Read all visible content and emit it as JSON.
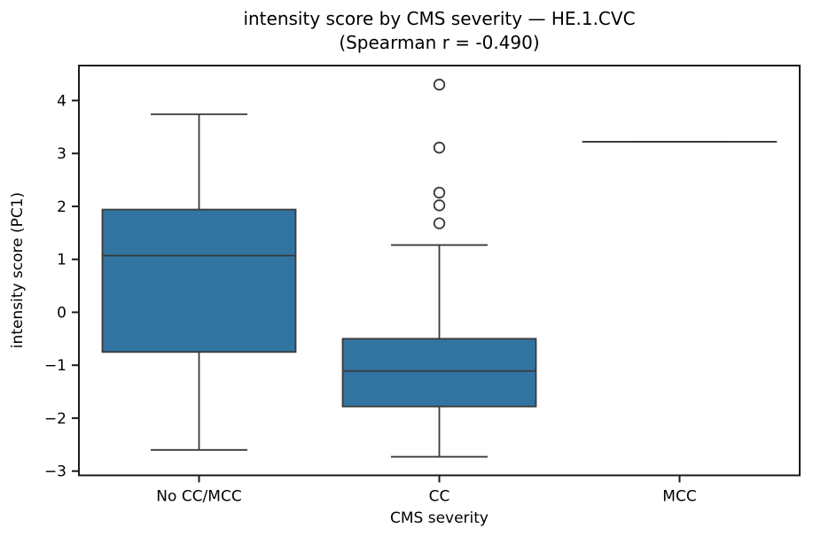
{
  "chart_data": {
    "type": "box",
    "title": "intensity score by CMS severity — HE.1.CVC",
    "subtitle": "(Spearman r = -0.490)",
    "xlabel": "CMS severity",
    "ylabel": "intensity score (PC1)",
    "categories": [
      "No CC/MCC",
      "CC",
      "MCC"
    ],
    "ylim": [
      -3.08,
      4.66
    ],
    "yticks": [
      -3,
      -2,
      -1,
      0,
      1,
      2,
      3,
      4
    ],
    "grid": false,
    "legend_position": "none",
    "series": [
      {
        "name": "No CC/MCC",
        "whisker_low": -2.6,
        "q1": -0.75,
        "median": 1.07,
        "q3": 1.94,
        "whisker_high": 3.74,
        "outliers": []
      },
      {
        "name": "CC",
        "whisker_low": -2.73,
        "q1": -1.78,
        "median": -1.11,
        "q3": -0.5,
        "whisker_high": 1.27,
        "outliers": [
          1.68,
          2.02,
          2.26,
          3.11,
          4.3
        ]
      },
      {
        "name": "MCC",
        "whisker_low": 3.22,
        "q1": 3.22,
        "median": 3.22,
        "q3": 3.22,
        "whisker_high": 3.22,
        "outliers": []
      }
    ],
    "colors": {
      "box_fill": "#3274A1",
      "box_edge": "#3A3A3A",
      "spine": "#1A1A1A",
      "text": "#000000",
      "background": "#FFFFFF"
    }
  }
}
